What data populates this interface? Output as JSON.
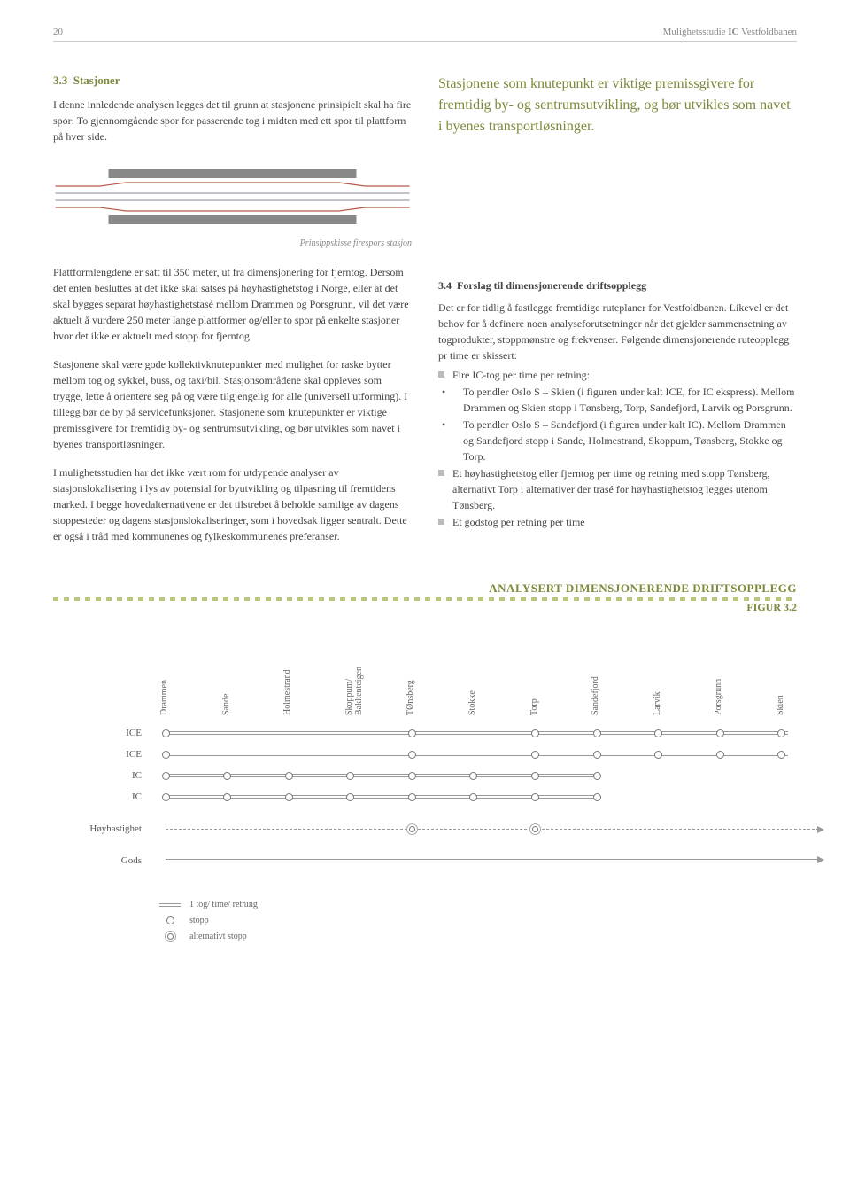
{
  "header": {
    "page_number": "20",
    "doc_title_a": "Mulighetsstudie",
    "doc_title_b": "IC",
    "doc_title_c": "Vestfoldbanen"
  },
  "section": {
    "number": "3.3",
    "title": "Stasjoner"
  },
  "left_para_1": "I denne innledende analysen legges det til grunn at stasjonene prinsipielt skal ha fire spor: To gjennomgående spor for passerende tog i midten med ett spor til plattform på hver side.",
  "callout": "Stasjonene som knutepunkt er viktige premissgivere for fremtidig by- og sentrumsutvikling, og bør utvikles som navet i byenes transportløsninger.",
  "figure1_caption": "Prinsippskisse firespors stasjon",
  "left_para_2": "Plattformlengdene er satt til 350 meter, ut fra dimensjonering for fjerntog. Dersom det enten besluttes at det ikke skal satses på høyhastighetstog i Norge, eller at det skal bygges separat høyhastighetstasé mellom Drammen og Porsgrunn, vil det være aktuelt å vurdere 250 meter lange plattformer og/eller to spor på enkelte stasjoner hvor det ikke er aktuelt med stopp for fjerntog.",
  "left_para_3": "Stasjonene skal være gode kollektivknutepunkter med mulighet for raske bytter mellom tog og sykkel, buss, og taxi/bil. Stasjonsområdene skal oppleves som trygge, lette å orientere seg på og være tilgjengelig for alle (universell utforming). I tillegg bør de by på servicefunksjoner. Stasjonene som knutepunkter er viktige premissgivere for fremtidig by- og sentrumsutvikling, og bør utvikles som navet i byenes transportløsninger.",
  "left_para_4": "I mulighetsstudien har det ikke vært rom for utdypende analyser av stasjonslokalisering i lys av potensial for byutvikling og tilpasning til fremtidens marked. I begge hovedalternativene er det tilstrebet å beholde samtlige av dagens stoppesteder og dagens stasjonslokaliseringer, som i hovedsak ligger sentralt. Dette er også i tråd med kommunenes og fylkeskommunenes preferanser.",
  "subsection": {
    "number": "3.4",
    "title": "Forslag til dimensjonerende driftsopplegg"
  },
  "right_para_1": "Det er for tidlig å fastlegge fremtidige ruteplaner for Vestfoldbanen. Likevel er det behov for å definere noen analyseforutsetninger når det gjelder sammensetning av togprodukter, stoppmønstre og frekvenser. Følgende dimensjonerende ruteopplegg pr time er skissert:",
  "bullets": {
    "b1": "Fire IC-tog per time per retning:",
    "b1a": "To pendler Oslo S – Skien (i figuren under kalt ICE, for IC ekspress). Mellom Drammen og Skien stopp i Tønsberg, Torp, Sandefjord, Larvik og Porsgrunn.",
    "b1b": "To pendler Oslo S – Sandefjord (i figuren under kalt IC). Mellom Drammen og Sandefjord stopp i Sande, Holmestrand, Skoppum, Tønsberg, Stokke og Torp.",
    "b2": "Et høyhastighetstog eller fjerntog per time og retning med stopp Tønsberg, alternativt Torp i alternativer der trasé for høyhastighetstog legges utenom Tønsberg.",
    "b3": "Et godstog per retning per time"
  },
  "figure2": {
    "title": "ANALYSERT DIMENSJONERENDE DRIFTSOPPLEGG",
    "subtitle": "FIGUR 3.2",
    "stations": [
      "Drammen",
      "Sande",
      "Holmestrand",
      "Skoppum/\nBakkenteigen",
      "TØnsberg",
      "Stokke",
      "Torp",
      "Sandefjord",
      "Larvik",
      "Porsgrunn",
      "Skien"
    ],
    "rows": [
      {
        "label": "ICE",
        "stops": [
          1,
          0,
          0,
          0,
          1,
          0,
          1,
          1,
          1,
          1,
          1
        ],
        "line_end": 10,
        "dashed": false
      },
      {
        "label": "ICE",
        "stops": [
          1,
          0,
          0,
          0,
          1,
          0,
          1,
          1,
          1,
          1,
          1
        ],
        "line_end": 10,
        "dashed": false
      },
      {
        "label": "IC",
        "stops": [
          1,
          1,
          1,
          1,
          1,
          1,
          1,
          1,
          0,
          0,
          0
        ],
        "line_end": 7,
        "dashed": false
      },
      {
        "label": "IC",
        "stops": [
          1,
          1,
          1,
          1,
          1,
          1,
          1,
          1,
          0,
          0,
          0
        ],
        "line_end": 7,
        "dashed": false
      },
      {
        "label": "Høyhastighet",
        "stops": [
          0,
          0,
          0,
          0,
          2,
          0,
          2,
          0,
          0,
          0,
          0
        ],
        "line_end": 10.5,
        "dashed": true,
        "arrow": true
      },
      {
        "label": "Gods",
        "stops": [
          0,
          0,
          0,
          0,
          0,
          0,
          0,
          0,
          0,
          0,
          0
        ],
        "line_end": 10.5,
        "dashed": false,
        "arrow": true
      }
    ]
  },
  "legend": {
    "l1": "1 tog/ time/ retning",
    "l2": "stopp",
    "l3": "alternativt stopp"
  },
  "colors": {
    "olive": "#7a8a3a",
    "track_red": "#b85a4a",
    "track_gray": "#9aa0a6"
  }
}
